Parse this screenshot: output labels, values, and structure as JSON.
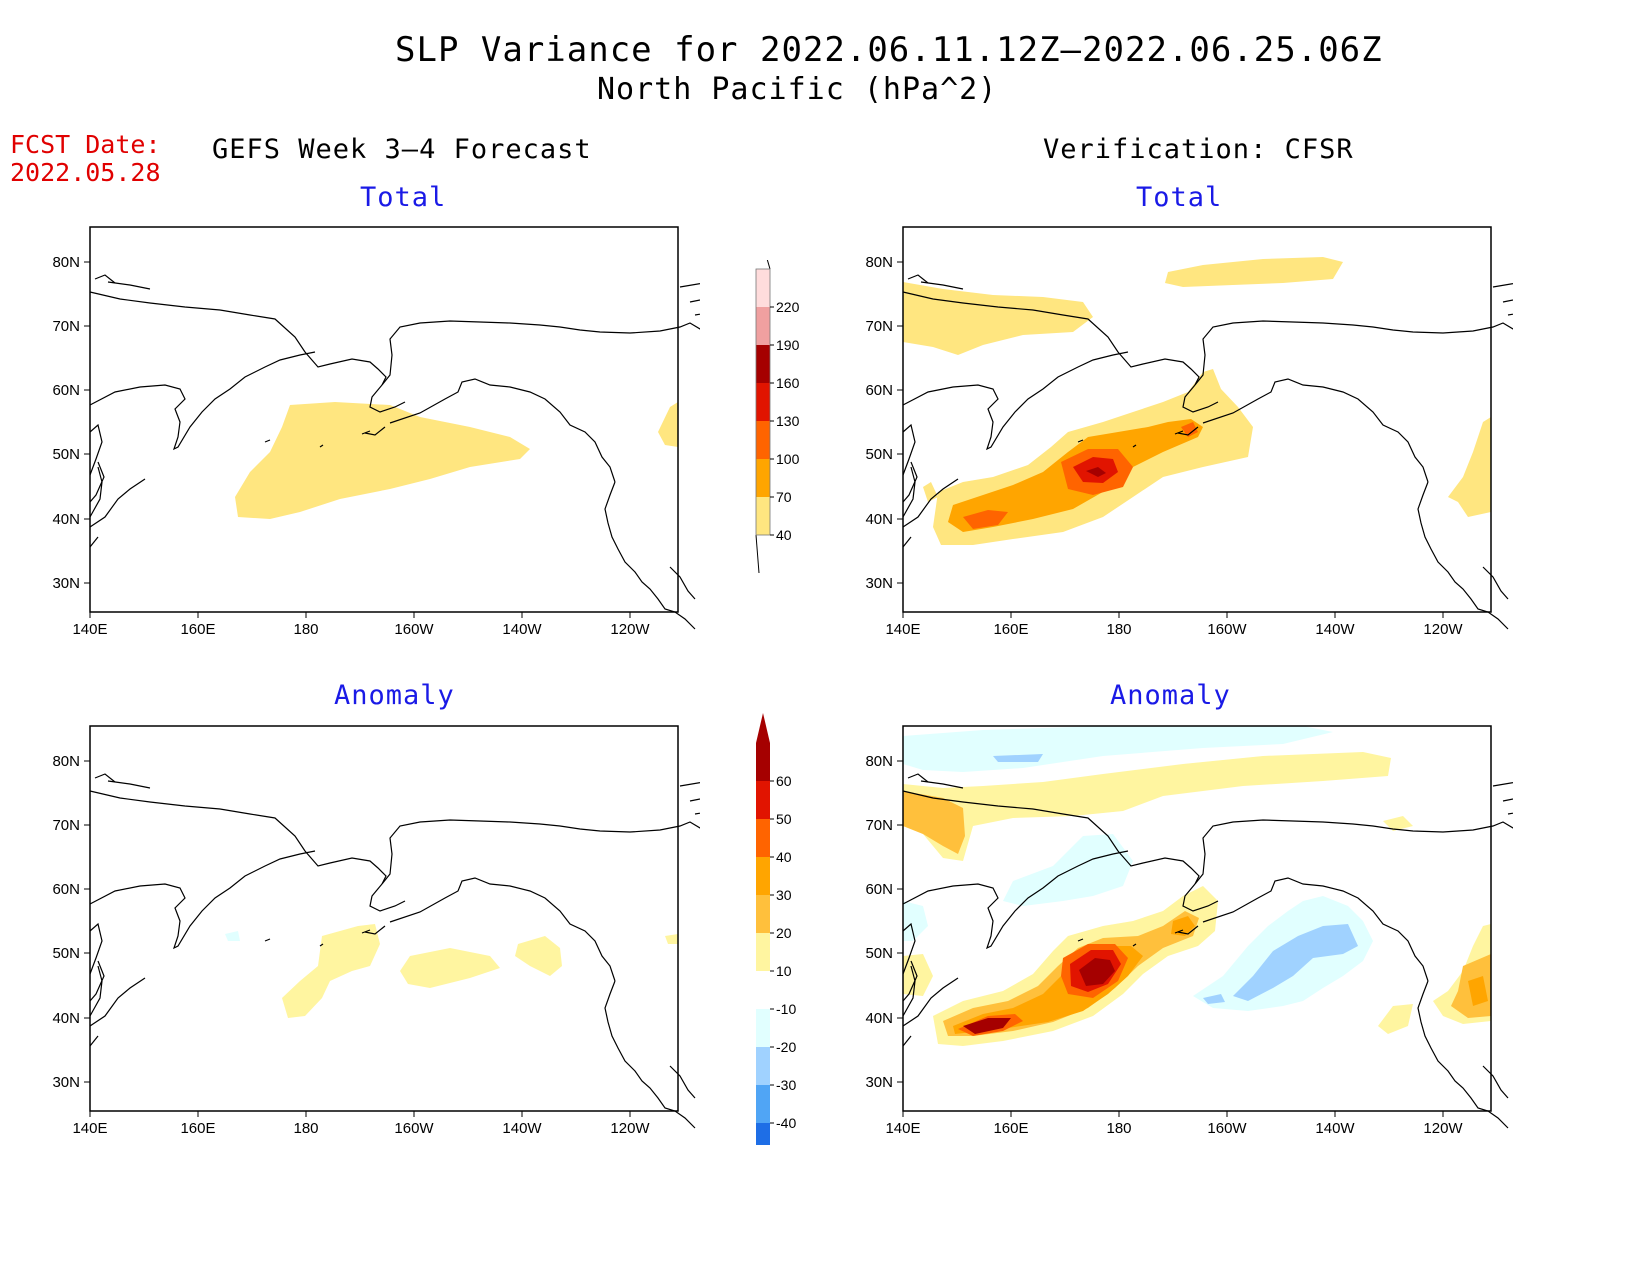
{
  "header": {
    "title": "SLP Variance for 2022.06.11.12Z–2022.06.25.06Z",
    "subtitle": "North Pacific (hPa^2)"
  },
  "fcst": {
    "line1": "FCST Date:",
    "line2": "2022.05.28"
  },
  "columns": {
    "left": "GEFS Week 3–4 Forecast",
    "right": "Verification: CFSR"
  },
  "panel_titles": {
    "total": "Total",
    "anomaly": "Anomaly"
  },
  "axes": {
    "x_ticks": [
      "140E",
      "160E",
      "180",
      "160W",
      "140W",
      "120W"
    ],
    "y_ticks": [
      "80N",
      "70N",
      "60N",
      "50N",
      "40N",
      "30N"
    ]
  },
  "colorbars": {
    "total": {
      "levels": [
        "40",
        "70",
        "100",
        "130",
        "160",
        "190",
        "220"
      ],
      "colors": [
        "#ffe680",
        "#ffa500",
        "#ff6400",
        "#e11400",
        "#a50000",
        "#f0a0a0",
        "#ffdcdc"
      ]
    },
    "anomaly": {
      "levels": [
        "60",
        "50",
        "40",
        "30",
        "20",
        "10",
        "-10",
        "-20",
        "-30",
        "-40"
      ],
      "colors_top_down": [
        "#a50000",
        "#e11400",
        "#ff6400",
        "#ffa500",
        "#ffc03c",
        "#fff5a0",
        "#ffffff",
        "#e1ffff",
        "#a0d2ff",
        "#50a5f5",
        "#1e6ee6"
      ]
    }
  }
}
